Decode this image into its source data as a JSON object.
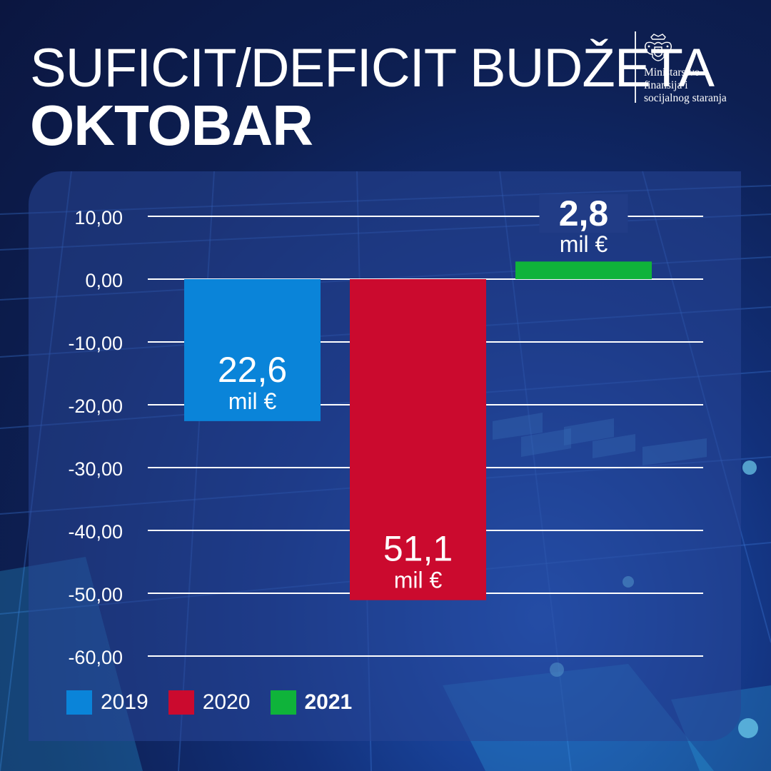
{
  "header": {
    "title_line1": "SUFICIT/DEFICIT BUDŽETA",
    "title_line2": "OKTOBAR"
  },
  "brand": {
    "icon": "montenegro-crest-icon",
    "line1": "Ministarstvo",
    "line2": "finansija i",
    "line3": "socijalnog staranja"
  },
  "chart_data": {
    "type": "bar",
    "title": "SUFICIT/DEFICIT BUDŽETA OKTOBAR",
    "categories": [
      "2019",
      "2020",
      "2021"
    ],
    "values": [
      -22.6,
      -51.1,
      2.8
    ],
    "data_labels": [
      {
        "value": "22,6",
        "unit": "mil €"
      },
      {
        "value": "51,1",
        "unit": "mil €"
      },
      {
        "value": "2,8",
        "unit": "mil €"
      }
    ],
    "colors": [
      "#0a84d9",
      "#cb0a2e",
      "#0fb33a"
    ],
    "ylim": [
      -60,
      10
    ],
    "yticks": [
      "10,00",
      "0,00",
      "-10,00",
      "-20,00",
      "-30,00",
      "-40,00",
      "-50,00",
      "-60,00"
    ],
    "grid": true,
    "legend_position": "bottom-left",
    "legend": [
      {
        "label": "2019",
        "bold": false
      },
      {
        "label": "2020",
        "bold": false
      },
      {
        "label": "2021",
        "bold": true
      }
    ]
  }
}
